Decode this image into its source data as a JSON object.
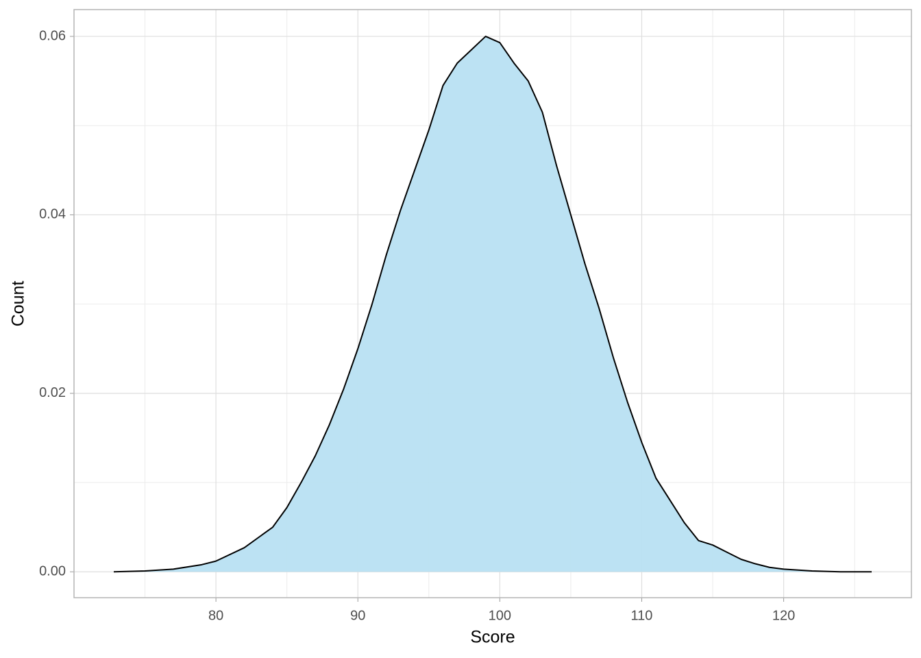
{
  "chart_data": {
    "type": "area",
    "x_label": "Score",
    "y_label": "Count",
    "x": [
      72.8,
      75,
      77,
      79,
      80,
      82,
      84,
      85,
      86,
      87,
      88,
      89,
      90,
      91,
      92,
      93,
      94,
      95,
      96,
      97,
      98,
      99,
      100,
      101,
      102,
      103,
      104,
      105,
      106,
      107,
      108,
      109,
      110,
      111,
      112,
      113,
      114,
      115,
      116,
      117,
      118,
      119,
      120,
      122,
      124,
      126.2
    ],
    "values": [
      0,
      0.0001,
      0.0003,
      0.0008,
      0.0012,
      0.0027,
      0.005,
      0.0072,
      0.01,
      0.013,
      0.0165,
      0.0205,
      0.025,
      0.03,
      0.0355,
      0.0405,
      0.045,
      0.0495,
      0.0545,
      0.057,
      0.0585,
      0.06,
      0.0593,
      0.057,
      0.055,
      0.0515,
      0.0455,
      0.04,
      0.0345,
      0.0295,
      0.024,
      0.019,
      0.0145,
      0.0105,
      0.008,
      0.0055,
      0.0035,
      0.003,
      0.0022,
      0.0014,
      0.0009,
      0.0005,
      0.0003,
      0.0001,
      0,
      0
    ],
    "color": "#b8e0f2",
    "line_color": "#000000",
    "xlim": [
      70,
      129
    ],
    "ylim": [
      -0.0029,
      0.063
    ],
    "xticks": [
      80,
      90,
      100,
      110,
      120
    ],
    "yticks": [
      {
        "value": 0,
        "label": "0.00"
      },
      {
        "value": 0.02,
        "label": "0.02"
      },
      {
        "value": 0.04,
        "label": "0.04"
      },
      {
        "value": 0.06,
        "label": "0.06"
      }
    ],
    "xminor": [
      75,
      85,
      95,
      105,
      115,
      125
    ],
    "yminor": [
      0.01,
      0.03,
      0.05
    ],
    "grid": true
  }
}
